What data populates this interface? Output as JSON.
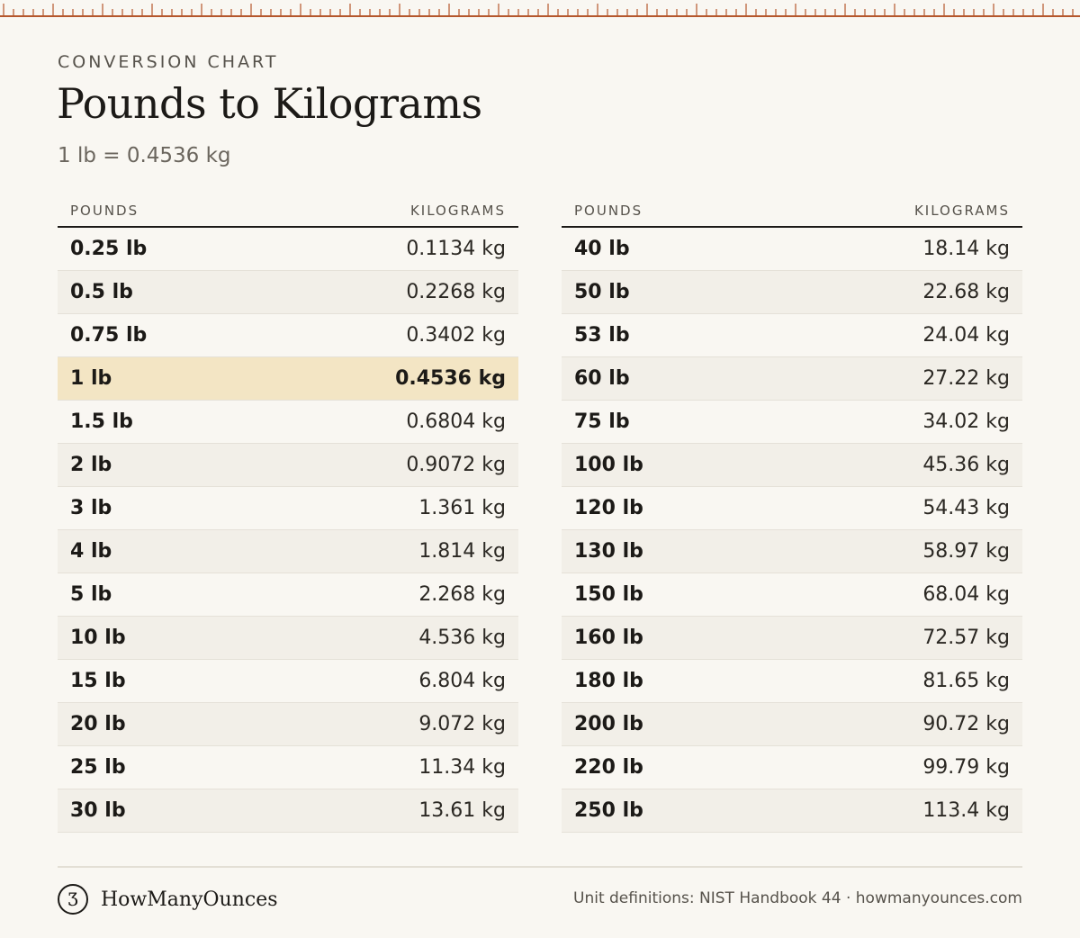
{
  "colors": {
    "accent": "#b5572c",
    "highlight": "#f3e5c4",
    "stripe": "#f2efe8"
  },
  "header": {
    "kicker": "CONVERSION CHART",
    "title": "Pounds to Kilograms",
    "subtitle": "1 lb = 0.4536 kg"
  },
  "tables": {
    "left": {
      "col_pounds": "POUNDS",
      "col_kilograms": "KILOGRAMS",
      "rows": [
        {
          "lb": "0.25 lb",
          "kg": "0.1134 kg"
        },
        {
          "lb": "0.5 lb",
          "kg": "0.2268 kg"
        },
        {
          "lb": "0.75 lb",
          "kg": "0.3402 kg"
        },
        {
          "lb": "1 lb",
          "kg": "0.4536 kg",
          "highlight": true
        },
        {
          "lb": "1.5 lb",
          "kg": "0.6804 kg"
        },
        {
          "lb": "2 lb",
          "kg": "0.9072 kg"
        },
        {
          "lb": "3 lb",
          "kg": "1.361 kg"
        },
        {
          "lb": "4 lb",
          "kg": "1.814 kg"
        },
        {
          "lb": "5 lb",
          "kg": "2.268 kg"
        },
        {
          "lb": "10 lb",
          "kg": "4.536 kg"
        },
        {
          "lb": "15 lb",
          "kg": "6.804 kg"
        },
        {
          "lb": "20 lb",
          "kg": "9.072 kg"
        },
        {
          "lb": "25 lb",
          "kg": "11.34 kg"
        },
        {
          "lb": "30 lb",
          "kg": "13.61 kg"
        }
      ]
    },
    "right": {
      "col_pounds": "POUNDS",
      "col_kilograms": "KILOGRAMS",
      "rows": [
        {
          "lb": "40 lb",
          "kg": "18.14 kg"
        },
        {
          "lb": "50 lb",
          "kg": "22.68 kg"
        },
        {
          "lb": "53 lb",
          "kg": "24.04 kg"
        },
        {
          "lb": "60 lb",
          "kg": "27.22 kg"
        },
        {
          "lb": "75 lb",
          "kg": "34.02 kg"
        },
        {
          "lb": "100 lb",
          "kg": "45.36 kg"
        },
        {
          "lb": "120 lb",
          "kg": "54.43 kg"
        },
        {
          "lb": "130 lb",
          "kg": "58.97 kg"
        },
        {
          "lb": "150 lb",
          "kg": "68.04 kg"
        },
        {
          "lb": "160 lb",
          "kg": "72.57 kg"
        },
        {
          "lb": "180 lb",
          "kg": "81.65 kg"
        },
        {
          "lb": "200 lb",
          "kg": "90.72 kg"
        },
        {
          "lb": "220 lb",
          "kg": "99.79 kg"
        },
        {
          "lb": "250 lb",
          "kg": "113.4 kg"
        }
      ]
    }
  },
  "footer": {
    "logo_mark": "Ʒ",
    "logo_text": "HowManyOunces",
    "credit": "Unit definitions: NIST Handbook 44 · howmanyounces.com"
  }
}
